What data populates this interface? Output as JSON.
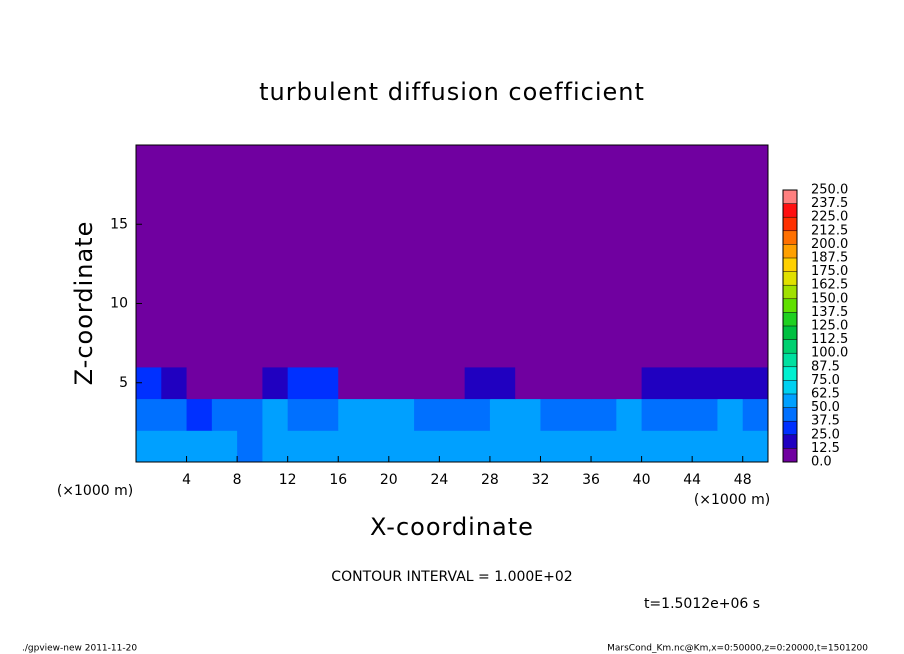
{
  "chart_data": {
    "type": "heatmap",
    "title": "turbulent diffusion coefficient",
    "xlabel": "X-coordinate",
    "ylabel": "Z-coordinate",
    "x_unit": "(×1000 m)",
    "y_unit": "(×1000 m)",
    "xlim": [
      0,
      50
    ],
    "xticks": [
      4,
      8,
      12,
      16,
      20,
      24,
      28,
      32,
      36,
      40,
      44,
      48
    ],
    "ylim": [
      0,
      20
    ],
    "yticks": [
      5,
      10,
      15
    ],
    "x": [
      1,
      3,
      5,
      7,
      9,
      11,
      13,
      15,
      17,
      19,
      21,
      23,
      25,
      27,
      29,
      31,
      33,
      35,
      37,
      39,
      41,
      43,
      45,
      47,
      49
    ],
    "y": [
      1,
      3,
      5,
      7,
      9,
      11,
      13,
      15,
      17,
      19
    ],
    "z": [
      [
        55,
        55,
        50,
        50,
        45,
        55,
        60,
        55,
        55,
        50,
        50,
        55,
        60,
        55,
        60,
        55,
        50,
        55,
        50,
        50,
        55,
        50,
        50,
        55,
        50
      ],
      [
        45,
        40,
        35,
        40,
        45,
        50,
        45,
        40,
        50,
        55,
        50,
        45,
        40,
        45,
        50,
        55,
        45,
        40,
        45,
        50,
        45,
        40,
        45,
        50,
        45
      ],
      [
        30,
        20,
        10,
        10,
        5,
        20,
        30,
        35,
        10,
        0,
        5,
        5,
        10,
        20,
        15,
        10,
        10,
        5,
        5,
        10,
        15,
        15,
        15,
        15,
        20
      ],
      [
        0,
        0,
        0,
        0,
        0,
        0,
        0,
        0,
        0,
        0,
        0,
        0,
        0,
        0,
        0,
        0,
        0,
        0,
        0,
        0,
        0,
        0,
        0,
        0,
        0
      ],
      [
        0,
        0,
        0,
        0,
        0,
        0,
        0,
        0,
        0,
        0,
        0,
        0,
        0,
        0,
        0,
        0,
        0,
        0,
        0,
        0,
        0,
        0,
        0,
        0,
        0
      ],
      [
        0,
        0,
        0,
        0,
        0,
        0,
        0,
        0,
        0,
        0,
        0,
        0,
        0,
        0,
        0,
        0,
        0,
        0,
        0,
        0,
        0,
        0,
        0,
        0,
        0
      ],
      [
        0,
        0,
        0,
        0,
        0,
        0,
        0,
        0,
        0,
        0,
        0,
        0,
        0,
        0,
        0,
        0,
        0,
        0,
        0,
        0,
        0,
        0,
        0,
        0,
        0
      ],
      [
        0,
        0,
        0,
        0,
        0,
        0,
        0,
        0,
        0,
        0,
        0,
        0,
        0,
        0,
        0,
        0,
        0,
        0,
        0,
        0,
        0,
        0,
        0,
        0,
        0
      ],
      [
        0,
        0,
        0,
        0,
        0,
        0,
        0,
        0,
        0,
        0,
        0,
        0,
        0,
        0,
        0,
        0,
        0,
        0,
        0,
        0,
        0,
        0,
        0,
        0,
        0
      ],
      [
        0,
        0,
        0,
        0,
        0,
        0,
        0,
        0,
        0,
        0,
        0,
        0,
        0,
        0,
        0,
        0,
        0,
        0,
        0,
        0,
        0,
        0,
        0,
        0,
        0
      ]
    ],
    "levels": [
      {
        "value": 0,
        "label": "0.0"
      },
      {
        "value": 12.5,
        "label": "12.5"
      },
      {
        "value": 25,
        "label": "25.0"
      },
      {
        "value": 37.5,
        "label": "37.5"
      },
      {
        "value": 50,
        "label": "50.0"
      },
      {
        "value": 62.5,
        "label": "62.5"
      },
      {
        "value": 75,
        "label": "75.0"
      },
      {
        "value": 87.5,
        "label": "87.5"
      },
      {
        "value": 100,
        "label": "100.0"
      },
      {
        "value": 112.5,
        "label": "112.5"
      },
      {
        "value": 125,
        "label": "125.0"
      },
      {
        "value": 137.5,
        "label": "137.5"
      },
      {
        "value": 150,
        "label": "150.0"
      },
      {
        "value": 162.5,
        "label": "162.5"
      },
      {
        "value": 175,
        "label": "175.0"
      },
      {
        "value": 187.5,
        "label": "187.5"
      },
      {
        "value": 200,
        "label": "200.0"
      },
      {
        "value": 212.5,
        "label": "212.5"
      },
      {
        "value": 225,
        "label": "225.0"
      },
      {
        "value": 237.5,
        "label": "237.5"
      },
      {
        "value": 250,
        "label": "250.0"
      }
    ],
    "colors": [
      "#7000a0",
      "#2000c0",
      "#0030ff",
      "#0070ff",
      "#00a0ff",
      "#00d0f0",
      "#00f0d0",
      "#00e0a0",
      "#00d070",
      "#00c040",
      "#20d020",
      "#60e000",
      "#a0e000",
      "#e0e000",
      "#ffd000",
      "#ffa000",
      "#ff7000",
      "#ff3000",
      "#ff1010",
      "#ff8080"
    ],
    "contour_note": "CONTOUR INTERVAL = 1.000E+02",
    "time_note": "t=1.5012e+06 s",
    "footer_left": "./gpview-new  2011-11-20",
    "footer_right": "MarsCond_Km.nc@Km,x=0:50000,z=0:20000,t=1501200"
  }
}
